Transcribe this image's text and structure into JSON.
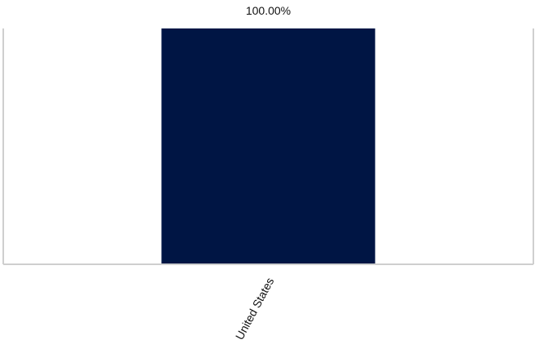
{
  "chart_data": {
    "type": "bar",
    "categories": [
      "United States"
    ],
    "values": [
      100
    ],
    "data_labels": [
      "100.00%"
    ],
    "ylim": [
      0,
      100
    ],
    "grid": false,
    "legend": "none",
    "colors": {
      "bar": "#001544",
      "axis": "#cfcfcf"
    }
  }
}
